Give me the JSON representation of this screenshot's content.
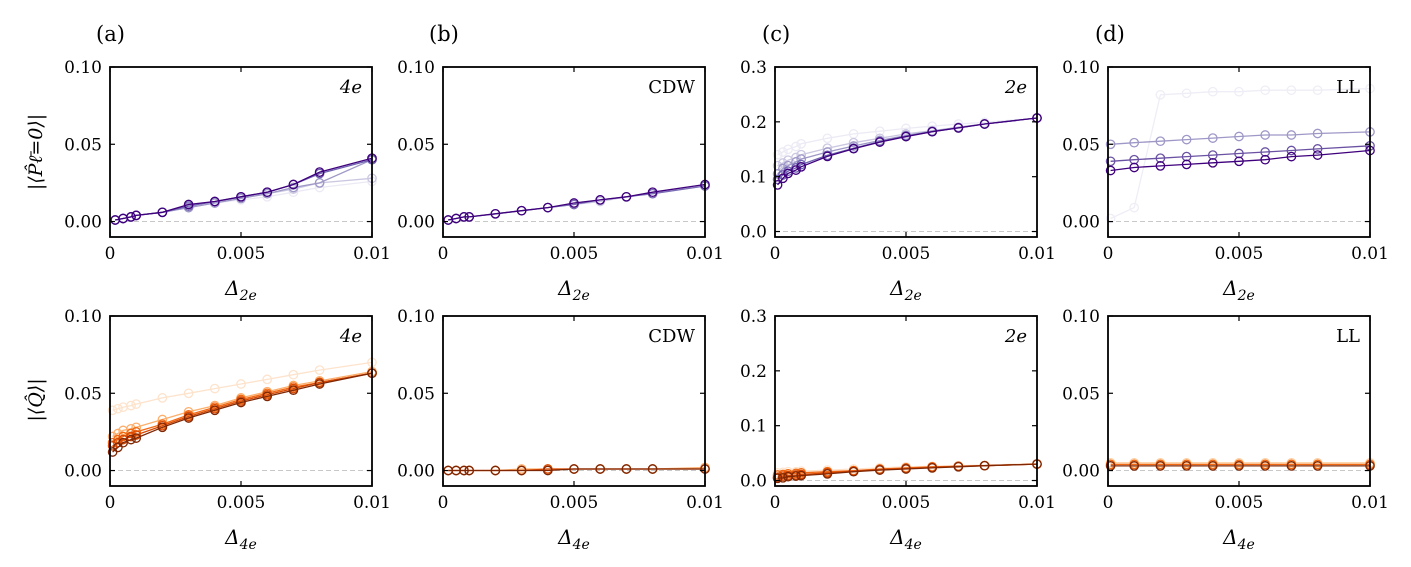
{
  "figure": {
    "panel_letters": [
      "(a)",
      "(b)",
      "(c)",
      "(d)"
    ],
    "top_ylabel": "|⟨P̂ℓ̄=0⟩|",
    "bottom_ylabel": "|⟨Q̂⟩|",
    "top_xlabel_base": "Δ",
    "top_xlabel_sub": "2e",
    "bottom_xlabel_base": "Δ",
    "bottom_xlabel_sub": "4e"
  },
  "chart_data": [
    {
      "id": "top-a",
      "type": "line",
      "title": "4e",
      "xlabel": "Δ2e",
      "ylabel": "|⟨P̂ℓ̄=0⟩|",
      "xlim": [
        0,
        0.01
      ],
      "ylim": [
        -0.01,
        0.1
      ],
      "xticks": [
        0,
        0.005,
        0.01
      ],
      "xticklabels": [
        "0",
        "0.005",
        "0.01"
      ],
      "yticks": [
        0,
        0.05,
        0.1
      ],
      "yticklabels": [
        "0.00",
        "0.05",
        "0.10"
      ],
      "x": [
        0.0002,
        0.0005,
        0.0008,
        0.001,
        0.002,
        0.003,
        0.004,
        0.005,
        0.006,
        0.007,
        0.008,
        0.01
      ],
      "series": [
        {
          "name": "s1",
          "color": "#ece9f4",
          "values": [
            0.001,
            0.002,
            0.003,
            0.004,
            0.006,
            0.009,
            0.012,
            0.014,
            0.016,
            0.019,
            0.022,
            0.026
          ]
        },
        {
          "name": "s2",
          "color": "#cbc7e1",
          "values": [
            0.001,
            0.002,
            0.003,
            0.004,
            0.006,
            0.009,
            0.012,
            0.015,
            0.018,
            0.021,
            0.025,
            0.028
          ]
        },
        {
          "name": "s3",
          "color": "#9e98c7",
          "values": [
            0.001,
            0.002,
            0.003,
            0.004,
            0.006,
            0.009,
            0.012,
            0.015,
            0.018,
            0.022,
            0.025,
            0.04
          ]
        },
        {
          "name": "s4",
          "color": "#6f62b0",
          "values": [
            0.001,
            0.002,
            0.003,
            0.004,
            0.006,
            0.01,
            0.013,
            0.016,
            0.019,
            0.024,
            0.031,
            0.04
          ]
        },
        {
          "name": "s5",
          "color": "#3f007d",
          "values": [
            0.001,
            0.002,
            0.003,
            0.004,
            0.006,
            0.011,
            0.013,
            0.016,
            0.019,
            0.024,
            0.032,
            0.041
          ]
        }
      ]
    },
    {
      "id": "top-b",
      "type": "line",
      "title": "CDW",
      "xlabel": "Δ2e",
      "ylabel": "",
      "xlim": [
        0,
        0.01
      ],
      "ylim": [
        -0.01,
        0.1
      ],
      "xticks": [
        0,
        0.005,
        0.01
      ],
      "xticklabels": [
        "0",
        "0.005",
        "0.01"
      ],
      "yticks": [
        0,
        0.05,
        0.1
      ],
      "yticklabels": [
        "0.00",
        "0.05",
        "0.10"
      ],
      "x": [
        0.0002,
        0.0005,
        0.0008,
        0.001,
        0.002,
        0.003,
        0.004,
        0.005,
        0.006,
        0.007,
        0.008,
        0.01
      ],
      "series": [
        {
          "name": "s1",
          "color": "#cbc7e1",
          "values": [
            0.001,
            0.002,
            0.003,
            0.003,
            0.005,
            0.007,
            0.009,
            0.011,
            0.013,
            0.016,
            0.018,
            0.023
          ]
        },
        {
          "name": "s2",
          "color": "#7b6cb5",
          "values": [
            0.001,
            0.002,
            0.003,
            0.003,
            0.005,
            0.007,
            0.009,
            0.011,
            0.014,
            0.016,
            0.018,
            0.023
          ]
        },
        {
          "name": "s3",
          "color": "#3f007d",
          "values": [
            0.001,
            0.002,
            0.003,
            0.003,
            0.005,
            0.007,
            0.009,
            0.012,
            0.014,
            0.016,
            0.019,
            0.024
          ]
        }
      ]
    },
    {
      "id": "top-c",
      "type": "line",
      "title": "2e",
      "xlabel": "Δ2e",
      "ylabel": "",
      "xlim": [
        0,
        0.01
      ],
      "ylim": [
        -0.01,
        0.3
      ],
      "xticks": [
        0,
        0.005,
        0.01
      ],
      "xticklabels": [
        "0",
        "0.005",
        "0.01"
      ],
      "yticks": [
        0,
        0.1,
        0.2,
        0.3
      ],
      "yticklabels": [
        "0.0",
        "0.1",
        "0.2",
        "0.3"
      ],
      "x": [
        0.0001,
        0.0003,
        0.0005,
        0.0008,
        0.001,
        0.002,
        0.003,
        0.004,
        0.005,
        0.006,
        0.007,
        0.008,
        0.01
      ],
      "series": [
        {
          "name": "s1",
          "color": "#eceaf4",
          "values": [
            0.14,
            0.145,
            0.15,
            0.155,
            0.16,
            0.17,
            0.178,
            0.183,
            0.188,
            0.192,
            0.196,
            0.199,
            0.207
          ]
        },
        {
          "name": "s2",
          "color": "#cbc7e1",
          "values": [
            0.12,
            0.125,
            0.13,
            0.135,
            0.14,
            0.152,
            0.162,
            0.17,
            0.178,
            0.184,
            0.19,
            0.196,
            0.207
          ]
        },
        {
          "name": "s3",
          "color": "#9e98c7",
          "values": [
            0.105,
            0.115,
            0.12,
            0.127,
            0.132,
            0.145,
            0.156,
            0.166,
            0.175,
            0.183,
            0.19,
            0.196,
            0.207
          ]
        },
        {
          "name": "s4",
          "color": "#6f62b0",
          "values": [
            0.095,
            0.103,
            0.11,
            0.116,
            0.122,
            0.139,
            0.152,
            0.164,
            0.174,
            0.182,
            0.189,
            0.196,
            0.207
          ]
        },
        {
          "name": "s5",
          "color": "#3f007d",
          "values": [
            0.085,
            0.097,
            0.106,
            0.112,
            0.118,
            0.137,
            0.151,
            0.163,
            0.173,
            0.182,
            0.189,
            0.196,
            0.207
          ]
        }
      ]
    },
    {
      "id": "top-d",
      "type": "line",
      "title": "LL",
      "xlabel": "Δ2e",
      "ylabel": "",
      "xlim": [
        0,
        0.01
      ],
      "ylim": [
        -0.01,
        0.1
      ],
      "xticks": [
        0,
        0.005,
        0.01
      ],
      "xticklabels": [
        "0",
        "0.005",
        "0.01"
      ],
      "yticks": [
        0,
        0.05,
        0.1
      ],
      "yticklabels": [
        "0.00",
        "0.05",
        "0.10"
      ],
      "x": [
        0.0001,
        0.001,
        0.002,
        0.003,
        0.004,
        0.005,
        0.006,
        0.007,
        0.008,
        0.01
      ],
      "series": [
        {
          "name": "s1",
          "color": "#efedf5",
          "values": [
            0.002,
            0.009,
            0.082,
            0.083,
            0.084,
            0.084,
            0.085,
            0.085,
            0.085,
            0.086
          ]
        },
        {
          "name": "s2",
          "color": "#9e98c7",
          "values": [
            0.05,
            0.051,
            0.052,
            0.053,
            0.054,
            0.055,
            0.056,
            0.056,
            0.057,
            0.058
          ]
        },
        {
          "name": "s3",
          "color": "#6a51a3",
          "values": [
            0.039,
            0.04,
            0.041,
            0.042,
            0.043,
            0.044,
            0.045,
            0.046,
            0.047,
            0.049
          ]
        },
        {
          "name": "s4",
          "color": "#3f007d",
          "values": [
            0.033,
            0.035,
            0.036,
            0.037,
            0.038,
            0.039,
            0.04,
            0.042,
            0.043,
            0.046
          ]
        }
      ]
    },
    {
      "id": "bottom-a",
      "type": "line",
      "title": "4e",
      "xlabel": "Δ4e",
      "ylabel": "|⟨Q̂⟩|",
      "xlim": [
        0,
        0.01
      ],
      "ylim": [
        -0.01,
        0.1
      ],
      "xticks": [
        0,
        0.005,
        0.01
      ],
      "xticklabels": [
        "0",
        "0.005",
        "0.01"
      ],
      "yticks": [
        0,
        0.05,
        0.1
      ],
      "yticklabels": [
        "0.00",
        "0.05",
        "0.10"
      ],
      "x": [
        0.0001,
        0.0003,
        0.0005,
        0.0008,
        0.001,
        0.002,
        0.003,
        0.004,
        0.005,
        0.006,
        0.007,
        0.008,
        0.01
      ],
      "series": [
        {
          "name": "s1",
          "color": "#fde3cc",
          "values": [
            0.039,
            0.04,
            0.041,
            0.042,
            0.043,
            0.047,
            0.05,
            0.053,
            0.056,
            0.059,
            0.062,
            0.065,
            0.07
          ]
        },
        {
          "name": "s2",
          "color": "#fdae6b",
          "values": [
            0.022,
            0.024,
            0.026,
            0.027,
            0.028,
            0.033,
            0.038,
            0.042,
            0.047,
            0.051,
            0.055,
            0.058,
            0.064
          ]
        },
        {
          "name": "s3",
          "color": "#f16913",
          "values": [
            0.018,
            0.02,
            0.022,
            0.024,
            0.025,
            0.03,
            0.036,
            0.041,
            0.046,
            0.05,
            0.054,
            0.057,
            0.063
          ]
        },
        {
          "name": "s4",
          "color": "#d94801",
          "values": [
            0.016,
            0.018,
            0.02,
            0.022,
            0.023,
            0.029,
            0.035,
            0.04,
            0.045,
            0.049,
            0.053,
            0.057,
            0.063
          ]
        },
        {
          "name": "s5",
          "color": "#7f2704",
          "values": [
            0.012,
            0.015,
            0.018,
            0.02,
            0.021,
            0.028,
            0.034,
            0.039,
            0.044,
            0.048,
            0.052,
            0.056,
            0.063
          ]
        }
      ]
    },
    {
      "id": "bottom-b",
      "type": "line",
      "title": "CDW",
      "xlabel": "Δ4e",
      "ylabel": "",
      "xlim": [
        0,
        0.01
      ],
      "ylim": [
        -0.01,
        0.1
      ],
      "xticks": [
        0,
        0.005,
        0.01
      ],
      "xticklabels": [
        "0",
        "0.005",
        "0.01"
      ],
      "yticks": [
        0,
        0.05,
        0.1
      ],
      "yticklabels": [
        "0.00",
        "0.05",
        "0.10"
      ],
      "x": [
        0.0002,
        0.0005,
        0.0008,
        0.001,
        0.002,
        0.003,
        0.004,
        0.005,
        0.006,
        0.007,
        0.008,
        0.01
      ],
      "series": [
        {
          "name": "s1",
          "color": "#fdae6b",
          "values": [
            0.0,
            0.0,
            0.0,
            0.0,
            0.0,
            0.001,
            0.001,
            0.001,
            0.001,
            0.001,
            0.001,
            0.002
          ]
        },
        {
          "name": "s2",
          "color": "#d94801",
          "values": [
            0.0,
            0.0,
            0.0,
            0.0,
            0.0,
            0.0,
            0.001,
            0.001,
            0.001,
            0.001,
            0.001,
            0.001
          ]
        },
        {
          "name": "s3",
          "color": "#7f2704",
          "values": [
            0.0,
            0.0,
            0.0,
            0.0,
            0.0,
            0.0,
            0.0,
            0.001,
            0.001,
            0.001,
            0.001,
            0.001
          ]
        }
      ]
    },
    {
      "id": "bottom-c",
      "type": "line",
      "title": "2e",
      "xlabel": "Δ4e",
      "ylabel": "",
      "xlim": [
        0,
        0.01
      ],
      "ylim": [
        -0.01,
        0.3
      ],
      "xticks": [
        0,
        0.005,
        0.01
      ],
      "xticklabels": [
        "0",
        "0.005",
        "0.01"
      ],
      "yticks": [
        0,
        0.1,
        0.2,
        0.3
      ],
      "yticklabels": [
        "0.0",
        "0.1",
        "0.2",
        "0.3"
      ],
      "x": [
        0.0001,
        0.0003,
        0.0005,
        0.0008,
        0.001,
        0.002,
        0.003,
        0.004,
        0.005,
        0.006,
        0.007,
        0.008,
        0.01
      ],
      "series": [
        {
          "name": "s1",
          "color": "#fde3cc",
          "values": [
            0.014,
            0.015,
            0.016,
            0.016,
            0.017,
            0.019,
            0.021,
            0.023,
            0.025,
            0.026,
            0.027,
            0.028,
            0.031
          ]
        },
        {
          "name": "s2",
          "color": "#f16913",
          "values": [
            0.01,
            0.011,
            0.012,
            0.013,
            0.014,
            0.016,
            0.018,
            0.021,
            0.023,
            0.025,
            0.026,
            0.027,
            0.03
          ]
        },
        {
          "name": "s3",
          "color": "#d94801",
          "values": [
            0.006,
            0.008,
            0.009,
            0.01,
            0.011,
            0.014,
            0.017,
            0.02,
            0.022,
            0.024,
            0.026,
            0.027,
            0.03
          ]
        },
        {
          "name": "s4",
          "color": "#7f2704",
          "values": [
            0.004,
            0.005,
            0.007,
            0.008,
            0.009,
            0.012,
            0.016,
            0.019,
            0.021,
            0.023,
            0.025,
            0.027,
            0.03
          ]
        }
      ]
    },
    {
      "id": "bottom-d",
      "type": "line",
      "title": "LL",
      "xlabel": "Δ4e",
      "ylabel": "",
      "xlim": [
        0,
        0.01
      ],
      "ylim": [
        -0.01,
        0.1
      ],
      "xticks": [
        0,
        0.005,
        0.01
      ],
      "xticklabels": [
        "0",
        "0.005",
        "0.01"
      ],
      "yticks": [
        0,
        0.05,
        0.1
      ],
      "yticklabels": [
        "0.00",
        "0.05",
        "0.10"
      ],
      "x": [
        0.0001,
        0.001,
        0.002,
        0.003,
        0.004,
        0.005,
        0.006,
        0.007,
        0.008,
        0.01
      ],
      "series": [
        {
          "name": "s1",
          "color": "#fdd0a2",
          "values": [
            0.005,
            0.005,
            0.005,
            0.005,
            0.005,
            0.005,
            0.005,
            0.005,
            0.005,
            0.005
          ]
        },
        {
          "name": "s2",
          "color": "#f16913",
          "values": [
            0.004,
            0.004,
            0.004,
            0.004,
            0.004,
            0.004,
            0.004,
            0.004,
            0.004,
            0.004
          ]
        },
        {
          "name": "s3",
          "color": "#7f2704",
          "values": [
            0.003,
            0.003,
            0.003,
            0.003,
            0.003,
            0.003,
            0.003,
            0.003,
            0.003,
            0.003
          ]
        }
      ]
    }
  ]
}
